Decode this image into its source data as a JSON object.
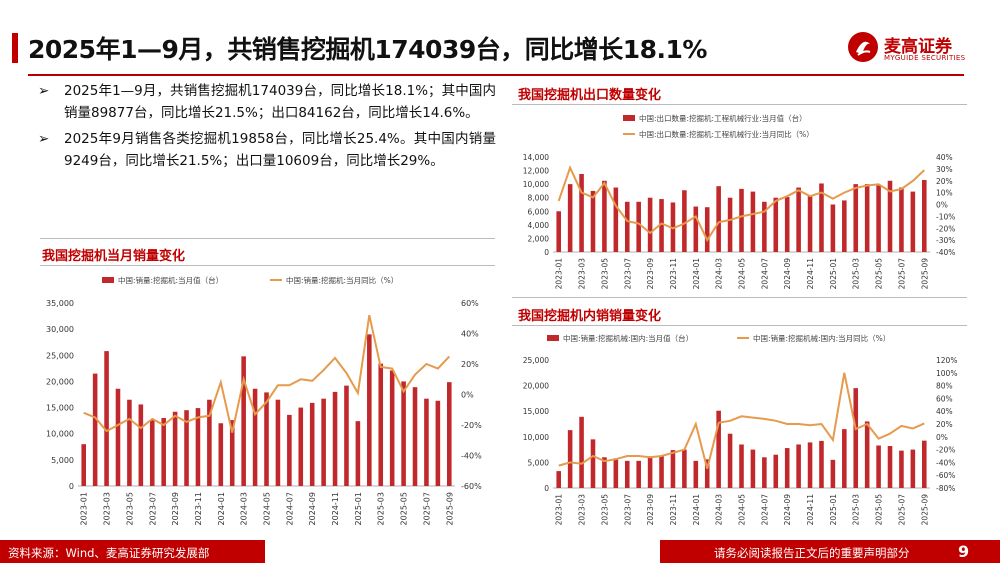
{
  "header": {
    "title": "2025年1—9月，共销售挖掘机174039台，同比增长18.1%",
    "logo_name": "麦高证券",
    "logo_sub": "MYGUIDE SECURITIES"
  },
  "bullets": [
    {
      "arrow": "➢",
      "text": "2025年1—9月，共销售挖掘机174039台，同比增长18.1%；其中国内销量89877台，同比增长21.5%；出口84162台，同比增长14.6%。"
    },
    {
      "arrow": "➢",
      "text": "2025年9月销售各类挖掘机19858台，同比增长25.4%。其中国内销量9249台，同比增长21.5%；出口量10609台，同比增长29%。"
    }
  ],
  "sections": {
    "total": "我国挖掘机当月销量变化",
    "export": "我国挖掘机出口数量变化",
    "domestic": "我国挖掘机内销销量变化"
  },
  "footer": {
    "source": "资料来源：Wind、麦高证券研究发展部",
    "note": "请务必阅读报告正文后的重要声明部分",
    "page": "9"
  },
  "colors": {
    "bar": "#c0282c",
    "line": "#e69a4c",
    "accent": "#c00000"
  },
  "chart_data": [
    {
      "id": "total",
      "type": "bar",
      "legend_bar": "中国:销量:挖掘机:当月值（台）",
      "legend_line": "中国:销量:挖掘机:当月同比（%）",
      "categories": [
        "2023-01",
        "2023-02",
        "2023-03",
        "2023-04",
        "2023-05",
        "2023-06",
        "2023-07",
        "2023-08",
        "2023-09",
        "2023-10",
        "2023-11",
        "2023-12",
        "2024-01",
        "2024-02",
        "2024-03",
        "2024-04",
        "2024-05",
        "2024-06",
        "2024-07",
        "2024-08",
        "2024-09",
        "2024-10",
        "2024-11",
        "2024-12",
        "2025-01",
        "2025-02",
        "2025-03",
        "2025-04",
        "2025-05",
        "2025-06",
        "2025-07",
        "2025-08",
        "2025-09"
      ],
      "tick_labels": [
        "2023-01",
        "2023-03",
        "2023-05",
        "2023-07",
        "2023-09",
        "2023-11",
        "2024-01",
        "2024-03",
        "2024-05",
        "2024-07",
        "2024-09",
        "2024-11",
        "2025-01",
        "2025-03",
        "2025-05",
        "2025-07",
        "2025-09"
      ],
      "values": [
        8000,
        21500,
        25800,
        18600,
        16500,
        15600,
        12600,
        13000,
        14200,
        14500,
        14900,
        16500,
        12000,
        12600,
        24800,
        18600,
        17900,
        16500,
        13600,
        15000,
        15900,
        16700,
        18000,
        19200,
        12400,
        29000,
        23400,
        22100,
        20000,
        18900,
        16700,
        16300,
        19858
      ],
      "yoy": [
        -12,
        -15,
        -24,
        -20,
        -16,
        -22,
        -16,
        -20,
        -14,
        -18,
        -15,
        -14,
        8,
        -25,
        10,
        -13,
        -5,
        6,
        6,
        10,
        9,
        16,
        24,
        14,
        1,
        52,
        18,
        17,
        2,
        13,
        20,
        17,
        25
      ],
      "ylim": [
        0,
        35000
      ],
      "yticks": [
        0,
        5000,
        10000,
        15000,
        20000,
        25000,
        30000,
        35000
      ],
      "ytick_labels": [
        "0",
        "5,000",
        "10,000",
        "15,000",
        "20,000",
        "25,000",
        "30,000",
        "35,000"
      ],
      "y2lim": [
        -60,
        60
      ],
      "y2ticks": [
        -60,
        -40,
        -20,
        0,
        20,
        40,
        60
      ],
      "y2tick_labels": [
        "-60%",
        "-40%",
        "-20%",
        "0%",
        "20%",
        "40%",
        "60%"
      ]
    },
    {
      "id": "export",
      "type": "bar",
      "legend_bar": "中国:出口数量:挖掘机:工程机械行业:当月值（台）",
      "legend_line": "中国:出口数量:挖掘机:工程机械行业:当月同比（%）",
      "categories": [
        "2023-01",
        "2023-02",
        "2023-03",
        "2023-04",
        "2023-05",
        "2023-06",
        "2023-07",
        "2023-08",
        "2023-09",
        "2023-10",
        "2023-11",
        "2023-12",
        "2024-01",
        "2024-02",
        "2024-03",
        "2024-04",
        "2024-05",
        "2024-06",
        "2024-07",
        "2024-08",
        "2024-09",
        "2024-10",
        "2024-11",
        "2024-12",
        "2025-01",
        "2025-02",
        "2025-03",
        "2025-04",
        "2025-05",
        "2025-06",
        "2025-07",
        "2025-08",
        "2025-09"
      ],
      "tick_labels": [
        "2023-01",
        "2023-03",
        "2023-05",
        "2023-07",
        "2023-09",
        "2023-11",
        "2024-01",
        "2024-03",
        "2024-05",
        "2024-07",
        "2024-09",
        "2024-11",
        "2025-01",
        "2025-03",
        "2025-05",
        "2025-07",
        "2025-09"
      ],
      "values": [
        6000,
        10000,
        11500,
        9000,
        10500,
        9500,
        7400,
        7400,
        8000,
        7800,
        7300,
        9100,
        6700,
        6600,
        9700,
        8000,
        9300,
        8900,
        7400,
        8000,
        8100,
        9500,
        8300,
        10100,
        7000,
        7600,
        10000,
        10000,
        9800,
        10500,
        9500,
        8900,
        10609
      ],
      "yoy": [
        3,
        31,
        10,
        6,
        18,
        -1,
        -14,
        -16,
        -24,
        -16,
        -20,
        -16,
        -10,
        -30,
        -15,
        -13,
        -10,
        -8,
        -6,
        3,
        7,
        12,
        7,
        10,
        5,
        10,
        14,
        16,
        17,
        11,
        13,
        20,
        29
      ],
      "ylim": [
        0,
        14000
      ],
      "yticks": [
        0,
        2000,
        4000,
        6000,
        8000,
        10000,
        12000,
        14000
      ],
      "ytick_labels": [
        "0",
        "2,000",
        "4,000",
        "6,000",
        "8,000",
        "10,000",
        "12,000",
        "14,000"
      ],
      "y2lim": [
        -40,
        40
      ],
      "y2ticks": [
        -40,
        -30,
        -20,
        -10,
        0,
        10,
        20,
        30,
        40
      ],
      "y2tick_labels": [
        "-40%",
        "-30%",
        "-20%",
        "-10%",
        "0%",
        "10%",
        "20%",
        "30%",
        "40%"
      ]
    },
    {
      "id": "domestic",
      "type": "bar",
      "legend_bar": "中国:销量:挖掘机械:国内:当月值（台）",
      "legend_line": "中国:销量:挖掘机械:国内:当月同比（%）",
      "categories": [
        "2023-01",
        "2023-02",
        "2023-03",
        "2023-04",
        "2023-05",
        "2023-06",
        "2023-07",
        "2023-08",
        "2023-09",
        "2023-10",
        "2023-11",
        "2023-12",
        "2024-01",
        "2024-02",
        "2024-03",
        "2024-04",
        "2024-05",
        "2024-06",
        "2024-07",
        "2024-08",
        "2024-09",
        "2024-10",
        "2024-11",
        "2024-12",
        "2025-01",
        "2025-02",
        "2025-03",
        "2025-04",
        "2025-05",
        "2025-06",
        "2025-07",
        "2025-08",
        "2025-09"
      ],
      "tick_labels": [
        "2023-01",
        "2023-03",
        "2023-05",
        "2023-07",
        "2023-09",
        "2023-11",
        "2024-01",
        "2024-03",
        "2024-05",
        "2024-07",
        "2024-09",
        "2024-11",
        "2025-01",
        "2025-03",
        "2025-05",
        "2025-07",
        "2025-09"
      ],
      "values": [
        3300,
        11300,
        13900,
        9500,
        6000,
        5800,
        5300,
        5300,
        6200,
        6300,
        7400,
        7500,
        5300,
        5600,
        15100,
        10600,
        8500,
        7500,
        6000,
        6500,
        7800,
        8500,
        8900,
        9200,
        5500,
        11500,
        19500,
        13000,
        8300,
        8200,
        7300,
        7500,
        9249
      ],
      "yoy": [
        -45,
        -40,
        -42,
        -30,
        -38,
        -35,
        -30,
        -30,
        -32,
        -30,
        -25,
        -20,
        20,
        -50,
        22,
        25,
        32,
        30,
        28,
        25,
        20,
        20,
        18,
        20,
        -5,
        100,
        12,
        20,
        -3,
        5,
        17,
        13,
        21
      ],
      "ylim": [
        0,
        25000
      ],
      "yticks": [
        0,
        5000,
        10000,
        15000,
        20000,
        25000
      ],
      "ytick_labels": [
        "0",
        "5,000",
        "10,000",
        "15,000",
        "20,000",
        "25,000"
      ],
      "y2lim": [
        -80,
        120
      ],
      "y2ticks": [
        -80,
        -60,
        -40,
        -20,
        0,
        20,
        40,
        60,
        80,
        100,
        120
      ],
      "y2tick_labels": [
        "-80%",
        "-60%",
        "-40%",
        "-20%",
        "0%",
        "20%",
        "40%",
        "60%",
        "80%",
        "100%",
        "120%"
      ]
    }
  ]
}
